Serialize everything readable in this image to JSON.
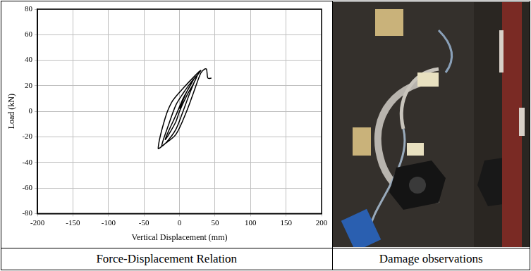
{
  "chart_data": {
    "type": "line",
    "x_label": "Vertical Displacement (mm)",
    "y_label": "Load (kN)",
    "x": [
      0,
      10,
      20,
      15,
      5,
      -5,
      -15,
      -20,
      -15,
      -5,
      0,
      10,
      20,
      25,
      18,
      5,
      -5,
      -15,
      -25,
      -18,
      -5,
      5,
      15,
      25,
      30,
      22,
      5,
      -10,
      -20,
      -30,
      -22,
      -5,
      10,
      20,
      30,
      35,
      38,
      40,
      45
    ],
    "values": [
      2,
      15,
      25,
      20,
      10,
      -3,
      -15,
      -22,
      -18,
      -8,
      0,
      12,
      22,
      28,
      24,
      14,
      5,
      -10,
      -27,
      -24,
      -14,
      0,
      15,
      28,
      32,
      28,
      18,
      8,
      -5,
      -29,
      -26,
      -18,
      0,
      15,
      30,
      33,
      33,
      26,
      26
    ],
    "color": "#000000",
    "xlim": [
      -200,
      200
    ],
    "xticks": [
      -200,
      -150,
      -100,
      -50,
      0,
      50,
      100,
      150,
      200
    ],
    "ylim": [
      -80,
      80
    ],
    "yticks": [
      -80,
      -60,
      -40,
      -20,
      0,
      20,
      40,
      60,
      80
    ],
    "grid": true
  },
  "captions": [
    "Force-Displacement Relation",
    "Damage observations"
  ]
}
